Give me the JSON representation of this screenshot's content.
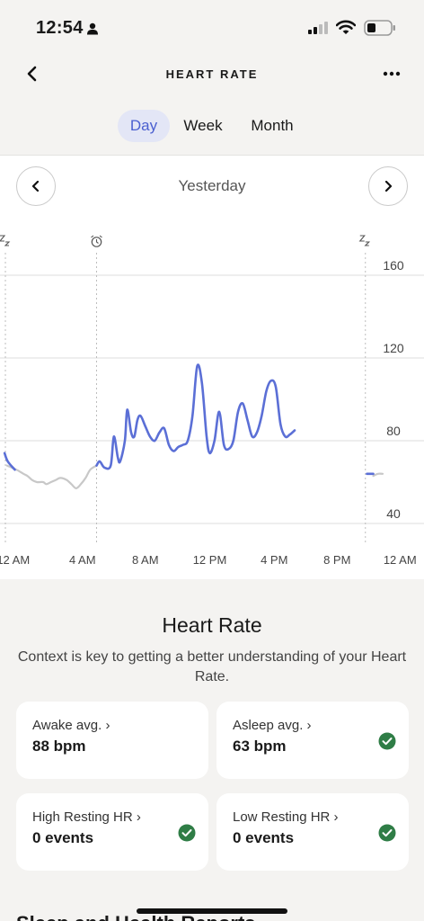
{
  "status_bar": {
    "time": "12:54"
  },
  "header": {
    "title": "HEART RATE"
  },
  "tabs": [
    {
      "label": "Day",
      "active": true
    },
    {
      "label": "Week",
      "active": false
    },
    {
      "label": "Month",
      "active": false
    }
  ],
  "date_nav": {
    "label": "Yesterday"
  },
  "chart_data": {
    "type": "line",
    "y_ticks": [
      "160",
      "120",
      "80",
      "40"
    ],
    "x_ticks": [
      "12 AM",
      "4 AM",
      "8 AM",
      "12 PM",
      "4 PM",
      "8 PM",
      "12 AM"
    ],
    "ylim": [
      40,
      160
    ],
    "grid": true,
    "series": [
      {
        "color": "#c8c8c8",
        "segments": [
          [
            [
              0.1,
              68
            ],
            [
              0.7,
              66
            ],
            [
              1.15,
              64
            ],
            [
              1.4,
              63
            ],
            [
              1.7,
              61
            ],
            [
              2.0,
              60
            ],
            [
              2.4,
              60
            ],
            [
              2.6,
              59
            ],
            [
              2.9,
              60
            ],
            [
              3.2,
              61
            ],
            [
              3.5,
              62
            ],
            [
              3.9,
              61
            ],
            [
              4.2,
              59
            ],
            [
              4.5,
              57
            ],
            [
              4.8,
              59
            ],
            [
              5.1,
              62
            ],
            [
              5.4,
              66
            ],
            [
              5.8,
              68
            ]
          ],
          [
            [
              23.4,
              63
            ],
            [
              23.7,
              64
            ],
            [
              24.0,
              64
            ]
          ]
        ]
      },
      {
        "color": "#5b6fd6",
        "segments": [
          [
            [
              -0.05,
              74
            ],
            [
              0.15,
              70
            ],
            [
              0.6,
              66
            ]
          ],
          [
            [
              5.8,
              68
            ],
            [
              6.0,
              70
            ],
            [
              6.3,
              67
            ],
            [
              6.7,
              68
            ],
            [
              6.9,
              82
            ],
            [
              7.15,
              72
            ],
            [
              7.3,
              70
            ],
            [
              7.6,
              80
            ],
            [
              7.75,
              95
            ],
            [
              8.0,
              84
            ],
            [
              8.2,
              82
            ],
            [
              8.4,
              90
            ],
            [
              8.6,
              92
            ],
            [
              8.9,
              87
            ],
            [
              9.2,
              82
            ],
            [
              9.5,
              80
            ],
            [
              9.8,
              84
            ],
            [
              10.1,
              86
            ],
            [
              10.4,
              78
            ],
            [
              10.7,
              75
            ],
            [
              11.0,
              77
            ],
            [
              11.3,
              78
            ],
            [
              11.6,
              80
            ],
            [
              11.9,
              92
            ],
            [
              12.2,
              116
            ],
            [
              12.5,
              108
            ],
            [
              12.8,
              82
            ],
            [
              13.0,
              74
            ],
            [
              13.3,
              80
            ],
            [
              13.6,
              94
            ],
            [
              13.9,
              78
            ],
            [
              14.2,
              76
            ],
            [
              14.5,
              80
            ],
            [
              14.8,
              94
            ],
            [
              15.1,
              98
            ],
            [
              15.4,
              90
            ],
            [
              15.7,
              82
            ],
            [
              16.0,
              84
            ],
            [
              16.3,
              92
            ],
            [
              16.6,
              104
            ],
            [
              16.9,
              109
            ],
            [
              17.2,
              106
            ],
            [
              17.5,
              88
            ],
            [
              17.8,
              82
            ],
            [
              18.1,
              83
            ],
            [
              18.4,
              85
            ]
          ],
          [
            [
              23.0,
              64
            ],
            [
              23.4,
              64
            ]
          ]
        ]
      }
    ],
    "annotations": [
      {
        "icon": "sleep-zz-icon",
        "x": 0
      },
      {
        "icon": "alarm-clock-icon",
        "x": 5.8
      },
      {
        "icon": "sleep-zz-icon",
        "x": 22.9
      }
    ]
  },
  "summary": {
    "title": "Heart Rate",
    "description": "Context is key to getting a better understanding of your Heart Rate."
  },
  "cards": [
    {
      "label": "Awake avg. ›",
      "value": "88 bpm",
      "checked": false
    },
    {
      "label": "Asleep avg. ›",
      "value": "63 bpm",
      "checked": true
    },
    {
      "label": "High Resting HR ›",
      "value": "0 events",
      "checked": true
    },
    {
      "label": "Low Resting HR ›",
      "value": "0 events",
      "checked": true
    }
  ],
  "next_section": {
    "title": "Sleep and Health Reports"
  },
  "colors": {
    "accent": "#5b6fd6",
    "tab_active_bg": "#e3e6f6",
    "check_green": "#2f7d46",
    "sleep_line": "#c8c8c8"
  }
}
